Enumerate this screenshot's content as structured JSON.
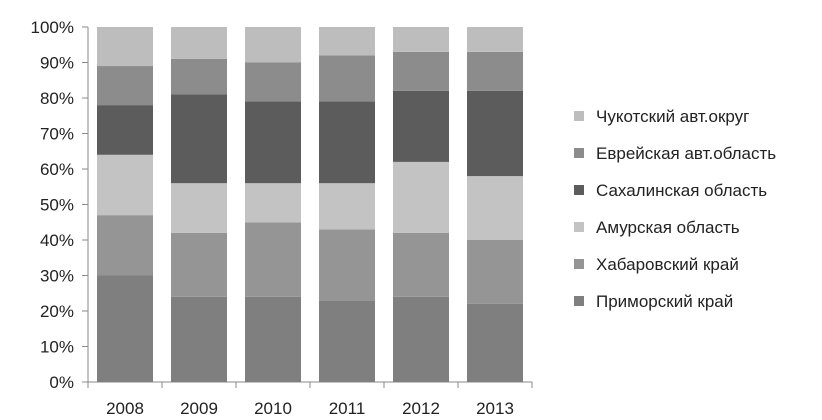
{
  "chart_data": {
    "type": "bar",
    "stacked": true,
    "normalized": true,
    "categories": [
      "2008",
      "2009",
      "2010",
      "2011",
      "2012",
      "2013"
    ],
    "ylim": [
      0,
      100
    ],
    "yticks": [
      "0%",
      "10%",
      "20%",
      "30%",
      "40%",
      "50%",
      "60%",
      "70%",
      "80%",
      "90%",
      "100%"
    ],
    "grid": false,
    "legend_position": "right",
    "series": [
      {
        "name": "Приморский край",
        "color": "#7f7f7f",
        "values": [
          30,
          24,
          24,
          23,
          24,
          22
        ]
      },
      {
        "name": "Хабаровский край",
        "color": "#959595",
        "values": [
          17,
          18,
          21,
          20,
          18,
          18
        ]
      },
      {
        "name": "Амурская область",
        "color": "#c3c3c3",
        "values": [
          17,
          14,
          11,
          13,
          20,
          18
        ]
      },
      {
        "name": "Сахалинская область",
        "color": "#5c5c5c",
        "values": [
          14,
          25,
          23,
          23,
          20,
          24
        ]
      },
      {
        "name": "Еврейская авт.область",
        "color": "#8c8c8c",
        "values": [
          11,
          10,
          11,
          13,
          11,
          11
        ]
      },
      {
        "name": "Чукотский авт.округ",
        "color": "#bdbdbd",
        "values": [
          11,
          9,
          10,
          8,
          7,
          7
        ]
      }
    ]
  }
}
